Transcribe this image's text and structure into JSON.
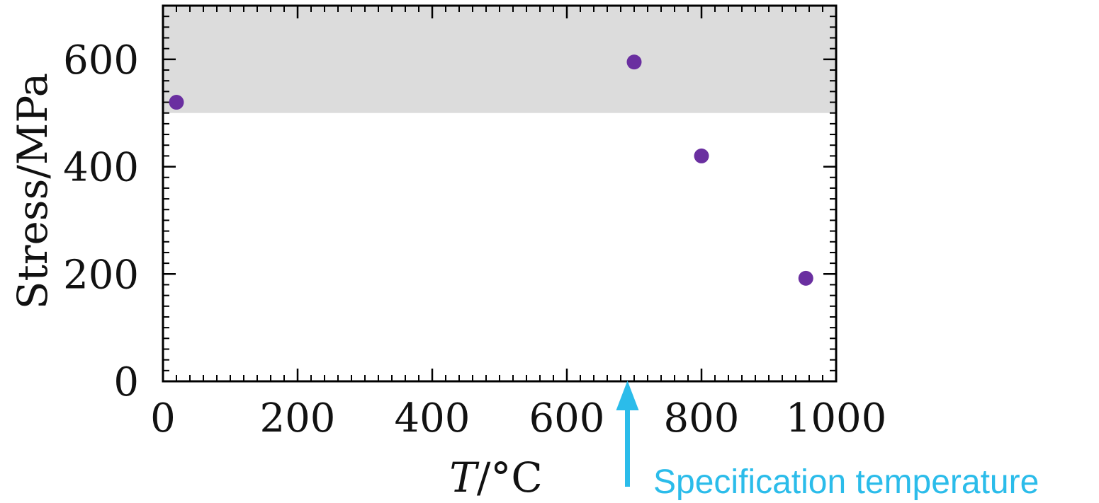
{
  "chart_data": {
    "type": "scatter",
    "title": "",
    "xlabel_italic": "T",
    "xlabel_rest": "/°C",
    "ylabel": "Stress/MPa",
    "xlim": [
      0,
      1000
    ],
    "ylim": [
      0,
      700
    ],
    "x_ticks": [
      0,
      200,
      400,
      600,
      800,
      1000
    ],
    "x_tick_labels": [
      "0",
      "200",
      "400",
      "600",
      "800",
      "1000"
    ],
    "y_ticks": [
      0,
      200,
      400,
      600
    ],
    "y_tick_labels": [
      "0",
      "200",
      "400",
      "600"
    ],
    "x_minor_step": 20,
    "y_minor_step": 20,
    "grid": false,
    "shaded_band": {
      "y_from": 500,
      "y_to": 700,
      "color": "#dcdcdc"
    },
    "series": [
      {
        "marker_color": "#6a2fa0",
        "points": [
          {
            "x": 20,
            "y": 520
          },
          {
            "x": 700,
            "y": 595
          },
          {
            "x": 800,
            "y": 420
          },
          {
            "x": 955,
            "y": 192
          }
        ]
      }
    ],
    "annotation": {
      "text": "Specification temperature",
      "x": 690,
      "color": "#2bbcea"
    }
  }
}
